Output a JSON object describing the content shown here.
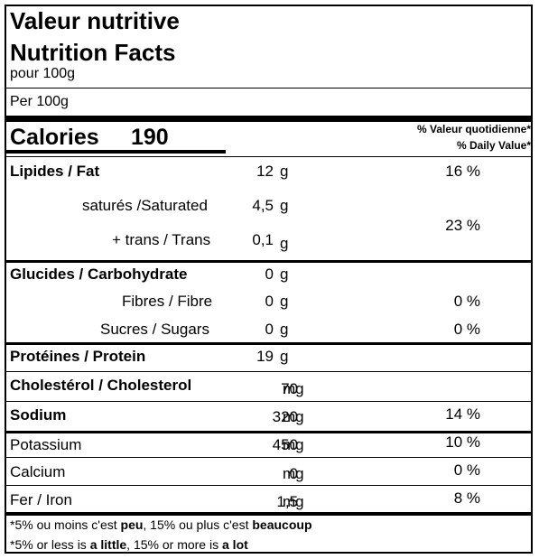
{
  "header": {
    "title_fr": "Valeur nutritive",
    "title_en": "Nutrition Facts",
    "serving_fr": "pour 100g",
    "serving_en": "Per 100g"
  },
  "calories": {
    "label": "Calories",
    "value": "190"
  },
  "dv_header": {
    "fr": "% Valeur quotidienne*",
    "en": "% Daily Value*"
  },
  "nutrients": [
    {
      "label": "Lipides / Fat",
      "amount": "12",
      "unit": "g",
      "dv": "16 %"
    },
    {
      "label": "saturés /Saturated",
      "amount": "4,5",
      "unit": "g"
    },
    {
      "label": "+ trans / Trans",
      "amount": "0,1",
      "unit": "g",
      "dv": "23 %"
    },
    {
      "label": "Glucides / Carbohydrate",
      "amount": "0",
      "unit": "g"
    },
    {
      "label": "Fibres / Fibre",
      "amount": "0",
      "unit": "g",
      "dv": "0 %"
    },
    {
      "label": "Sucres / Sugars",
      "amount": "0",
      "unit": "g",
      "dv": "0 %"
    },
    {
      "label": "Protéines / Protein",
      "amount": "19",
      "unit": "g"
    },
    {
      "label": "Cholestérol / Cholesterol",
      "amount": "70",
      "unit": "mg"
    },
    {
      "label": "Sodium",
      "amount": "320",
      "unit": "mg",
      "dv": "14 %"
    },
    {
      "label": "Potassium",
      "amount": "450",
      "unit": "mg",
      "dv": "10 %"
    },
    {
      "label": "Calcium",
      "amount": "0",
      "unit": "mg",
      "dv": "0 %"
    },
    {
      "label": "Fer / Iron",
      "amount": "1,5",
      "unit": "mg",
      "dv": "8 %"
    }
  ],
  "footnote": {
    "fr": {
      "a": "*5% ou moins c'est ",
      "b": "peu",
      "c": ", 15% ou plus c'est ",
      "d": "beaucoup"
    },
    "en": {
      "a": "*5% or less is ",
      "b": "a little",
      "c": ", 15% or more is ",
      "d": "a lot"
    }
  }
}
